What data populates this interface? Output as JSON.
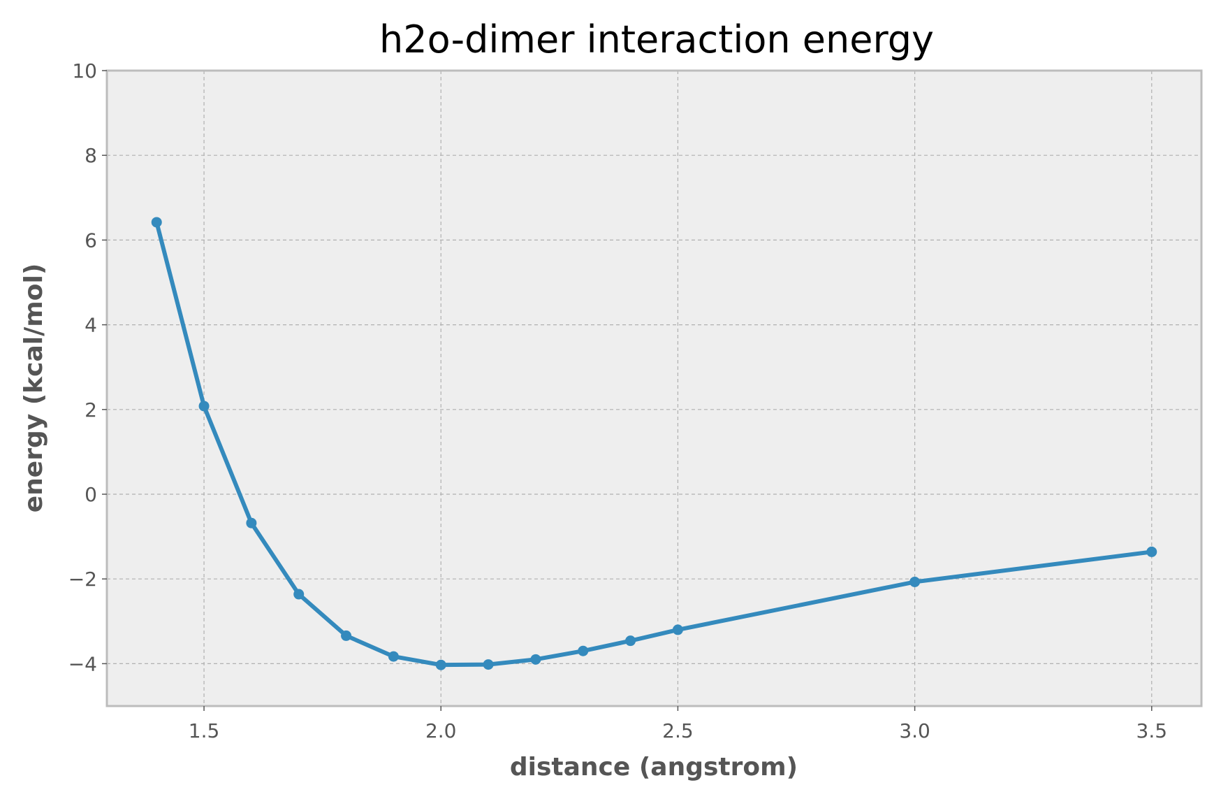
{
  "chart_data": {
    "type": "line",
    "title": "h2o-dimer interaction energy",
    "xlabel": "distance (angstrom)",
    "ylabel": "energy (kcal/mol)",
    "xlim": [
      1.295,
      3.605
    ],
    "ylim": [
      -5,
      10
    ],
    "x_ticks": [
      1.5,
      2.0,
      2.5,
      3.0,
      3.5
    ],
    "x_tick_labels": [
      "1.5",
      "2.0",
      "2.5",
      "3.0",
      "3.5"
    ],
    "y_ticks": [
      -4,
      -2,
      0,
      2,
      4,
      6,
      8,
      10
    ],
    "y_tick_labels": [
      "−4",
      "−2",
      "0",
      "2",
      "4",
      "6",
      "8",
      "10"
    ],
    "grid": true,
    "series": [
      {
        "color": "#348abd",
        "x": [
          1.4,
          1.5,
          1.6,
          1.7,
          1.8,
          1.9,
          2.0,
          2.1,
          2.2,
          2.3,
          2.4,
          2.5,
          3.0,
          3.5
        ],
        "y": [
          6.42,
          2.08,
          -0.68,
          -2.36,
          -3.34,
          -3.83,
          -4.03,
          -4.02,
          -3.9,
          -3.7,
          -3.46,
          -3.2,
          -2.07,
          -1.36
        ]
      }
    ]
  }
}
